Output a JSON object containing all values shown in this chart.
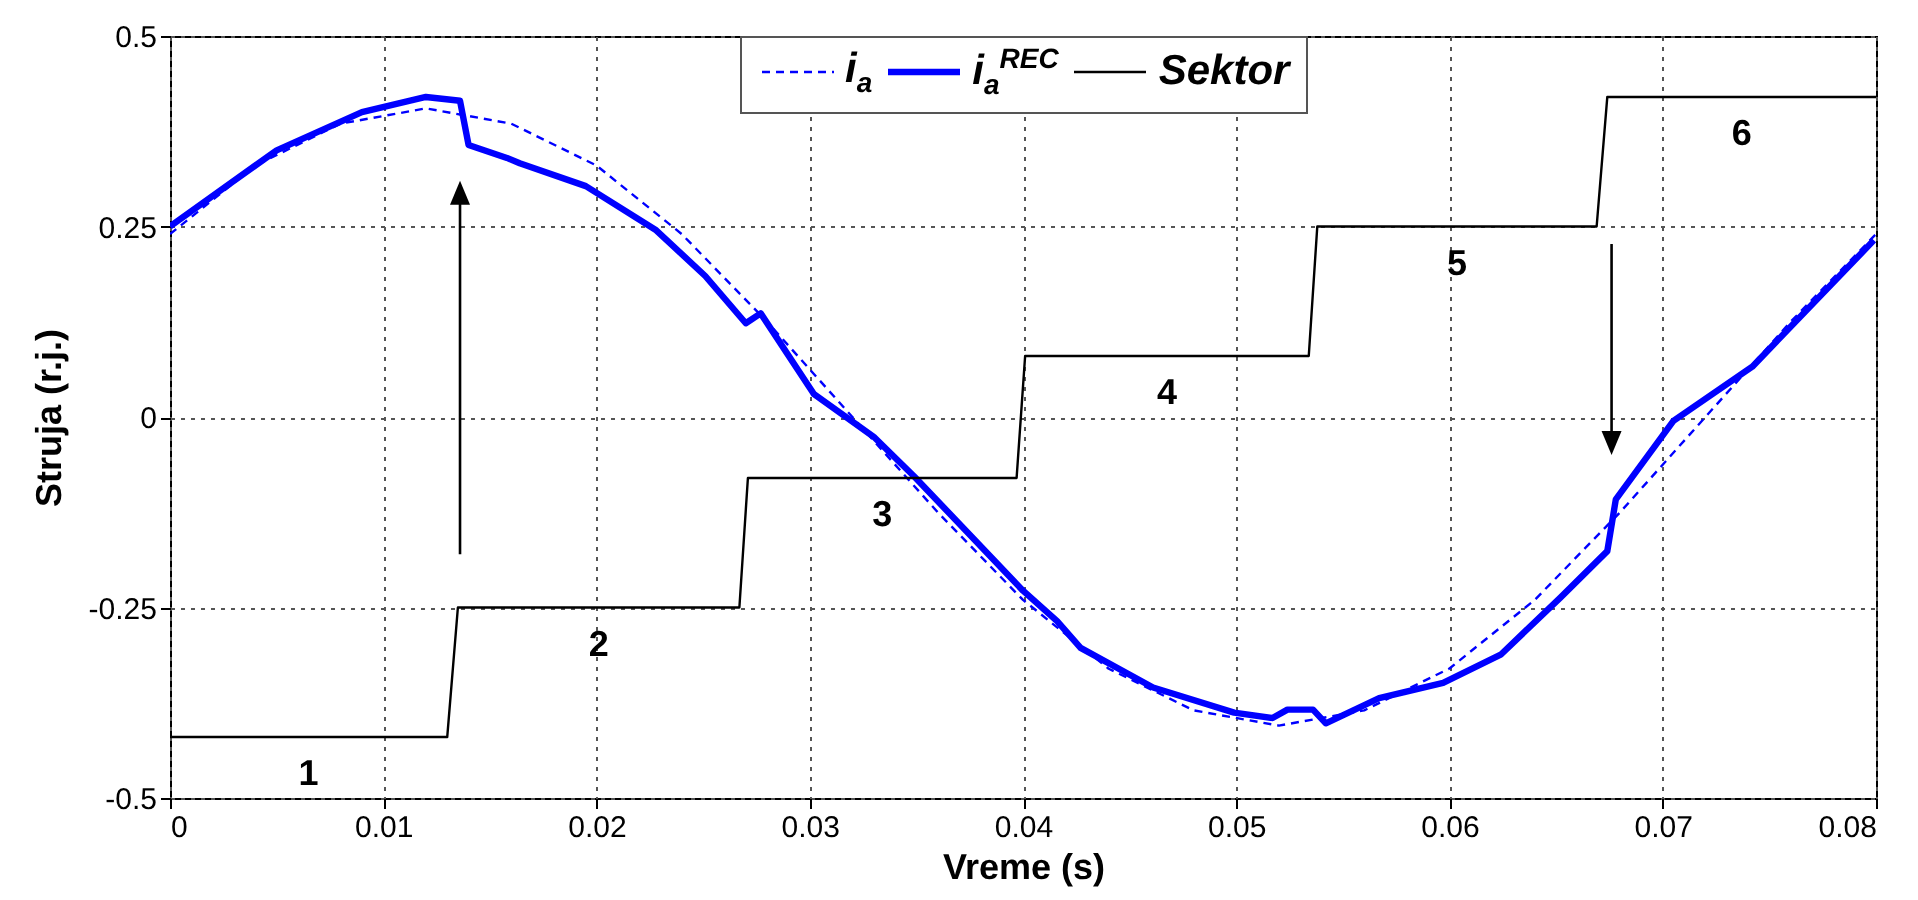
{
  "chart_data": {
    "type": "line",
    "xlabel": "Vreme (s)",
    "ylabel": "Struja (r.j.)",
    "xlim": [
      0,
      0.08
    ],
    "xticks": [
      0,
      0.01,
      0.02,
      0.03,
      0.04,
      0.05,
      0.06,
      0.07,
      0.08
    ],
    "ylim": [
      -0.5,
      0.5
    ],
    "yticks": [
      -0.5,
      -0.25,
      0,
      0.25,
      0.5
    ],
    "grid": true,
    "legend": "top",
    "series": [
      {
        "name": "i$_{a}$",
        "color": "#0000ff",
        "line_style": "dashed",
        "x": [
          0,
          0.004,
          0.008,
          0.012,
          0.016,
          0.02,
          0.024,
          0.028,
          0.032,
          0.036,
          0.04,
          0.044,
          0.048,
          0.052,
          0.056,
          0.06,
          0.064,
          0.068,
          0.072,
          0.076,
          0.08
        ],
        "values": [
          0.24,
          0.33,
          0.385,
          0.405,
          0.385,
          0.33,
          0.24,
          0.125,
          0,
          -0.125,
          -0.24,
          -0.33,
          -0.385,
          -0.405,
          -0.385,
          -0.33,
          -0.24,
          -0.125,
          0,
          0.125,
          0.24
        ]
      },
      {
        "name": "i$_{a}$$^{REC}$",
        "color": "#0000ff",
        "line_style": "solid",
        "x": [
          0,
          0.005,
          0.009,
          0.012,
          0.0136,
          0.014,
          0.0158,
          0.0164,
          0.0195,
          0.0228,
          0.0251,
          0.027,
          0.0277,
          0.0302,
          0.033,
          0.0349,
          0.04,
          0.0416,
          0.0427,
          0.0461,
          0.0499,
          0.0517,
          0.0524,
          0.0536,
          0.0542,
          0.0567,
          0.0597,
          0.0624,
          0.0652,
          0.0674,
          0.0678,
          0.0705,
          0.0742,
          0.0799
        ],
        "values": [
          0.25,
          0.35,
          0.4,
          0.42,
          0.415,
          0.357,
          0.34,
          0.333,
          0.303,
          0.245,
          0.185,
          0.123,
          0.136,
          0.03,
          -0.026,
          -0.078,
          -0.228,
          -0.268,
          -0.303,
          -0.355,
          -0.388,
          -0.395,
          -0.384,
          -0.384,
          -0.402,
          -0.369,
          -0.349,
          -0.312,
          -0.237,
          -0.176,
          -0.108,
          -0.005,
          0.066,
          0.232
        ]
      },
      {
        "name": "Sektor",
        "color": "#000000",
        "line_style": "solid",
        "x": [
          0,
          0.013,
          0.0135,
          0.0267,
          0.0271,
          0.0397,
          0.0401,
          0.0534,
          0.0538,
          0.0669,
          0.0674,
          0.08
        ],
        "values": [
          -0.42,
          -0.42,
          -0.25,
          -0.25,
          -0.08,
          -0.08,
          0.08,
          0.08,
          0.25,
          0.25,
          0.42,
          0.42
        ]
      }
    ],
    "annotations": [
      "1",
      "2",
      "3",
      "4",
      "5",
      "6"
    ]
  }
}
